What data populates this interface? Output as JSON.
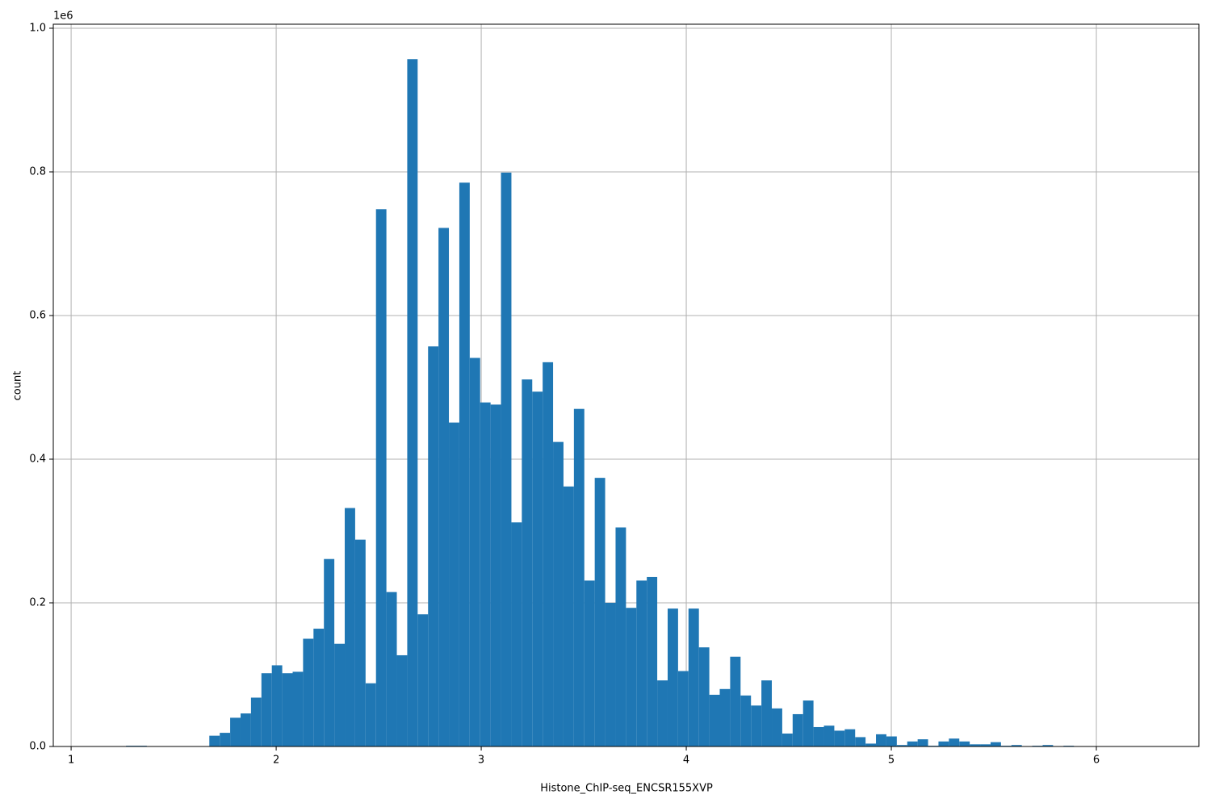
{
  "chart_data": {
    "type": "histogram",
    "xlabel": "Histone_ChIP-seq_ENCSR155XVP",
    "ylabel": "count",
    "y_offset_label": "1e6",
    "color": "#1f77b4",
    "grid": true,
    "bins": [
      1.166,
      1.2168,
      1.2676,
      1.3184,
      1.3692,
      1.42,
      1.4708,
      1.5216,
      1.5724,
      1.6232,
      1.674,
      1.7248,
      1.7756,
      1.8264,
      1.8772,
      1.928,
      1.9788,
      2.0296,
      2.0804,
      2.1312,
      2.182,
      2.2328,
      2.2836,
      2.3344,
      2.3852,
      2.436,
      2.4868,
      2.5376,
      2.5884,
      2.6392,
      2.69,
      2.7408,
      2.7916,
      2.8424,
      2.8932,
      2.944,
      2.9948,
      3.0456,
      3.0964,
      3.1472,
      3.198,
      3.2488,
      3.2996,
      3.3504,
      3.4012,
      3.452,
      3.5028,
      3.5536,
      3.6044,
      3.6552,
      3.706,
      3.7568,
      3.8076,
      3.8584,
      3.9092,
      3.96,
      4.0108,
      4.0616,
      4.1124,
      4.1632,
      4.214,
      4.2648,
      4.3156,
      4.3664,
      4.4172,
      4.468,
      4.5188,
      4.5696,
      4.6204,
      4.6712,
      4.722,
      4.7728,
      4.8236,
      4.8744,
      4.9252,
      4.976,
      5.0268,
      5.0776,
      5.1284,
      5.1792,
      5.23,
      5.2808,
      5.3316,
      5.3824,
      5.4332,
      5.484,
      5.5348,
      5.5856,
      5.6364,
      5.6872,
      5.738,
      5.7888,
      5.8396,
      5.8904,
      5.9412,
      5.992,
      6.0428,
      6.0936,
      6.1444,
      6.1952,
      6.246
    ],
    "values": [
      0,
      0,
      1000,
      1000,
      0,
      0,
      0,
      0,
      0,
      500,
      15000,
      19000,
      40000,
      46000,
      68000,
      102000,
      113000,
      102000,
      104000,
      150000,
      164000,
      261000,
      143000,
      332000,
      288000,
      88000,
      748000,
      215000,
      127000,
      957000,
      184000,
      557000,
      722000,
      451000,
      785000,
      541000,
      479000,
      476000,
      799000,
      312000,
      511000,
      494000,
      535000,
      424000,
      362000,
      470000,
      231000,
      374000,
      200000,
      305000,
      193000,
      231000,
      236000,
      92000,
      192000,
      105000,
      192000,
      138000,
      72000,
      80000,
      125000,
      71000,
      57000,
      92000,
      53000,
      18000,
      45000,
      64000,
      27000,
      29000,
      22000,
      24000,
      13000,
      4000,
      17000,
      14000,
      2000,
      7000,
      10000,
      1000,
      7000,
      11000,
      7000,
      3000,
      3000,
      6000,
      1000,
      2000,
      0,
      1000,
      2000,
      0,
      1000,
      0,
      0,
      0,
      0,
      0,
      0,
      200
    ],
    "xlim": [
      0.913,
      6.5
    ],
    "xticks": [
      1,
      2,
      3,
      4,
      5,
      6
    ],
    "ylim": [
      0,
      1005600
    ],
    "yticks": [
      {
        "value": 0,
        "label": "0.0"
      },
      {
        "value": 200000,
        "label": "0.2"
      },
      {
        "value": 400000,
        "label": "0.4"
      },
      {
        "value": 600000,
        "label": "0.6"
      },
      {
        "value": 800000,
        "label": "0.8"
      },
      {
        "value": 1000000,
        "label": "1.0"
      }
    ]
  }
}
